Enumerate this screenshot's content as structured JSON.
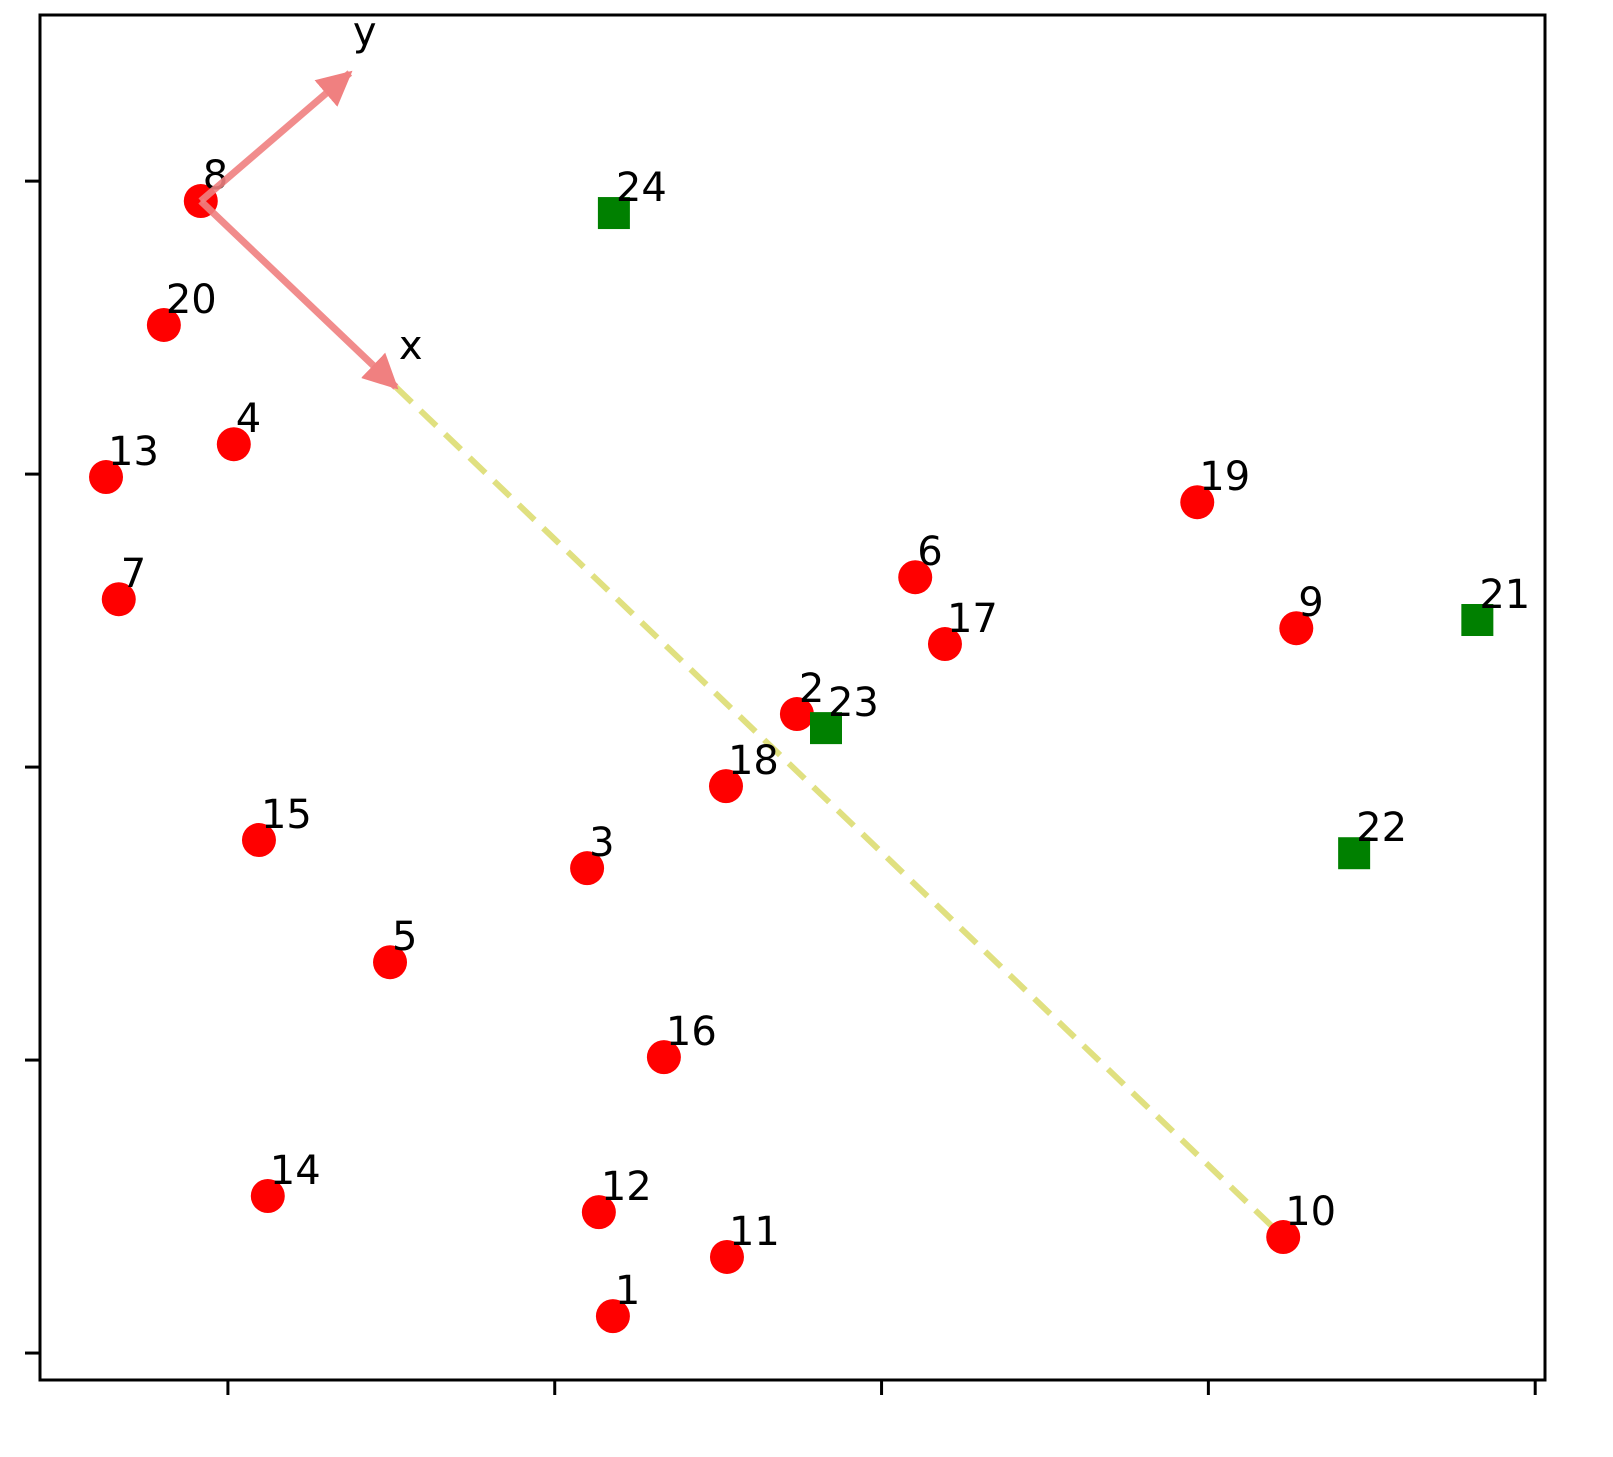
{
  "chart_data": {
    "type": "scatter",
    "xlim": [
      -0.575,
      4.03
    ],
    "ylim": [
      -0.092,
      4.567
    ],
    "xticks": [
      0,
      1,
      2,
      3,
      4
    ],
    "yticks": [
      0,
      1,
      2,
      3,
      4
    ],
    "series": [
      {
        "color": "#ff0000",
        "marker": "circle",
        "labels": [
          "1",
          "2",
          "3",
          "4",
          "5",
          "6",
          "7",
          "8",
          "9",
          "10",
          "11",
          "12",
          "13",
          "14",
          "15",
          "16",
          "17",
          "18",
          "19",
          "20"
        ],
        "x": [
          1.178,
          1.741,
          1.099,
          0.018,
          0.496,
          2.103,
          -0.334,
          -0.083,
          3.269,
          3.229,
          1.527,
          1.135,
          -0.373,
          0.122,
          0.095,
          1.334,
          2.194,
          1.524,
          2.966,
          -0.196
        ],
        "y": [
          0.126,
          2.181,
          1.655,
          3.102,
          1.334,
          2.648,
          2.573,
          3.932,
          2.474,
          0.396,
          0.328,
          0.481,
          2.99,
          0.536,
          1.751,
          1.01,
          2.42,
          1.935,
          2.904,
          3.509
        ]
      },
      {
        "color": "#008000",
        "marker": "square",
        "labels": [
          "21",
          "22",
          "23",
          "24"
        ],
        "x": [
          3.823,
          3.446,
          1.83,
          1.181
        ],
        "y": [
          2.502,
          1.706,
          2.133,
          3.891
        ]
      }
    ],
    "dashed_line": {
      "color": "#e0e080",
      "x": [
        0.514,
        3.229
      ],
      "y": [
        3.297,
        0.396
      ]
    },
    "arrows": [
      {
        "label": "x",
        "color": "#f08080",
        "x": [
          -0.083,
          0.514
        ],
        "y": [
          3.932,
          3.297
        ]
      },
      {
        "label": "y",
        "color": "#f08080",
        "x": [
          -0.083,
          0.373
        ],
        "y": [
          3.932,
          4.369
        ]
      }
    ]
  }
}
